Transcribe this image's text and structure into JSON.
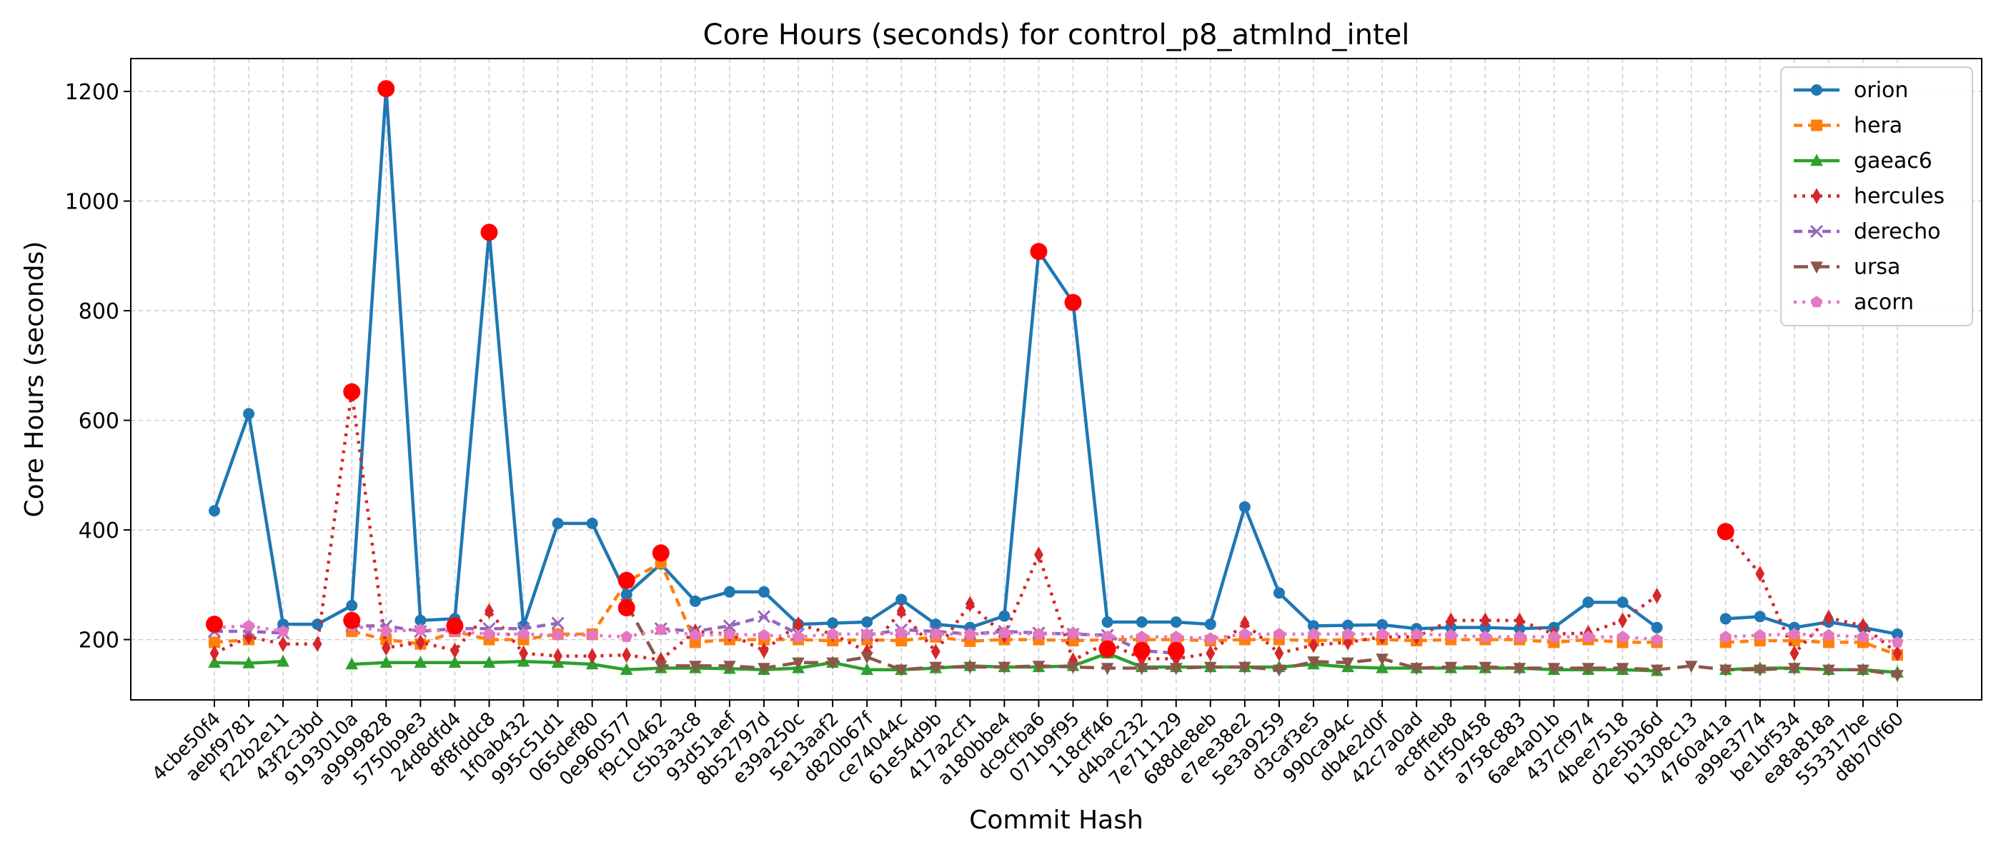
{
  "chart_data": {
    "type": "line",
    "title": "Core Hours (seconds) for control_p8_atmlnd_intel",
    "xlabel": "Commit Hash",
    "ylabel": "Core Hours (seconds)",
    "ylim": [
      90,
      1260
    ],
    "yticks": [
      200,
      400,
      600,
      800,
      1000,
      1200
    ],
    "grid": true,
    "legend_position": "top-right",
    "categories": [
      "4cbe50f4",
      "aebf9781",
      "f22b2e11",
      "43f2c3bd",
      "9193010a",
      "a9999828",
      "5750b9e3",
      "24d8dfd4",
      "8f8fddc8",
      "1f0ab432",
      "995c51d1",
      "065def80",
      "0e960577",
      "f9c10462",
      "c5b3a3c8",
      "93d51aef",
      "8b52797d",
      "e39a250c",
      "5e13aaf2",
      "d820b67f",
      "ce74044c",
      "61e54d9b",
      "417a2cf1",
      "a180bbe4",
      "dc9cfba6",
      "071b9f95",
      "118cff46",
      "d4bac232",
      "7e711129",
      "688de8eb",
      "e7ee38e2",
      "5e3a9259",
      "d3caf3e5",
      "990ca94c",
      "db4e2d0f",
      "42c7a0ad",
      "ac8ffeb8",
      "d1f50458",
      "a758c883",
      "6ae4a01b",
      "437cf974",
      "4bee7518",
      "d2e5b36d",
      "b1308c13",
      "4760a41a",
      "a99e3774",
      "be1bf534",
      "ea8a818a",
      "553317be",
      "d8b70f60"
    ],
    "series": [
      {
        "name": "orion",
        "color": "#1f77b4",
        "dash": "",
        "marker": "circle",
        "values": [
          435,
          612,
          228,
          228,
          262,
          1205,
          235,
          238,
          943,
          225,
          412,
          412,
          282,
          338,
          270,
          287,
          287,
          228,
          230,
          232,
          273,
          228,
          222,
          243,
          908,
          815,
          232,
          232,
          232,
          228,
          442,
          285,
          225,
          226,
          227,
          220,
          222,
          222,
          220,
          222,
          268,
          268,
          222,
          null,
          238,
          242,
          222,
          232,
          222,
          210
        ]
      },
      {
        "name": "hera",
        "color": "#ff7f0e",
        "dash": "12,8",
        "marker": "square",
        "values": [
          195,
          200,
          null,
          null,
          215,
          200,
          192,
          215,
          200,
          200,
          210,
          210,
          305,
          340,
          195,
          200,
          200,
          200,
          198,
          200,
          198,
          205,
          197,
          200,
          200,
          198,
          200,
          200,
          200,
          198,
          200,
          200,
          198,
          200,
          200,
          198,
          200,
          200,
          200,
          195,
          200,
          195,
          195,
          null,
          195,
          198,
          198,
          195,
          195,
          172
        ]
      },
      {
        "name": "gaeac6",
        "color": "#2ca02c",
        "dash": "",
        "marker": "triangle-up",
        "values": [
          158,
          157,
          160,
          null,
          155,
          158,
          158,
          158,
          158,
          160,
          158,
          155,
          145,
          148,
          148,
          147,
          145,
          148,
          158,
          145,
          145,
          148,
          152,
          150,
          150,
          152,
          175,
          150,
          150,
          150,
          150,
          150,
          155,
          150,
          148,
          148,
          148,
          148,
          148,
          145,
          145,
          145,
          143,
          null,
          145,
          148,
          148,
          145,
          145,
          140
        ]
      },
      {
        "name": "hercules",
        "color": "#d62728",
        "dash": "4,8",
        "marker": "diamond",
        "values": [
          175,
          205,
          192,
          192,
          652,
          185,
          195,
          180,
          252,
          175,
          170,
          170,
          172,
          163,
          215,
          210,
          180,
          228,
          210,
          178,
          252,
          178,
          265,
          208,
          355,
          162,
          195,
          165,
          165,
          175,
          230,
          175,
          190,
          195,
          205,
          205,
          235,
          235,
          235,
          210,
          212,
          235,
          280,
          null,
          395,
          320,
          175,
          240,
          225,
          175
        ]
      },
      {
        "name": "derecho",
        "color": "#9467bd",
        "dash": "12,8",
        "marker": "x",
        "values": [
          215,
          215,
          212,
          null,
          225,
          225,
          215,
          220,
          220,
          220,
          230,
          null,
          null,
          220,
          215,
          225,
          242,
          210,
          null,
          208,
          218,
          215,
          210,
          215,
          212,
          210,
          208,
          180,
          175,
          null,
          null,
          null,
          null,
          null,
          null,
          null,
          null,
          null,
          null,
          null,
          null,
          null,
          null,
          null,
          null,
          null,
          null,
          null,
          null,
          null
        ]
      },
      {
        "name": "ursa",
        "color": "#8c564b",
        "dash": "20,10",
        "marker": "triangle-down",
        "values": [
          null,
          null,
          null,
          null,
          null,
          null,
          null,
          null,
          null,
          null,
          null,
          null,
          265,
          152,
          152,
          152,
          148,
          158,
          158,
          168,
          145,
          150,
          150,
          150,
          152,
          150,
          148,
          148,
          148,
          150,
          150,
          145,
          160,
          158,
          165,
          148,
          150,
          150,
          148,
          148,
          148,
          148,
          145,
          152,
          145,
          145,
          148,
          145,
          145,
          135
        ]
      },
      {
        "name": "acorn",
        "color": "#e377c2",
        "dash": "4,8",
        "marker": "pentagon",
        "values": [
          222,
          225,
          215,
          null,
          225,
          215,
          218,
          215,
          210,
          210,
          208,
          208,
          205,
          218,
          208,
          210,
          208,
          205,
          210,
          210,
          212,
          210,
          210,
          212,
          210,
          212,
          205,
          205,
          205,
          202,
          210,
          210,
          210,
          210,
          210,
          210,
          208,
          205,
          205,
          205,
          205,
          205,
          200,
          null,
          205,
          208,
          210,
          208,
          205,
          195
        ]
      }
    ],
    "highlights": [
      {
        "x": "4cbe50f4",
        "y": 228
      },
      {
        "x": "9193010a",
        "y": 652
      },
      {
        "x": "9193010a",
        "y": 235
      },
      {
        "x": "a9999828",
        "y": 1205
      },
      {
        "x": "24d8dfd4",
        "y": 225
      },
      {
        "x": "8f8fddc8",
        "y": 943
      },
      {
        "x": "0e960577",
        "y": 308
      },
      {
        "x": "0e960577",
        "y": 258
      },
      {
        "x": "f9c10462",
        "y": 358
      },
      {
        "x": "dc9cfba6",
        "y": 908
      },
      {
        "x": "071b9f95",
        "y": 815
      },
      {
        "x": "118cff46",
        "y": 183
      },
      {
        "x": "d4bac232",
        "y": 180
      },
      {
        "x": "7e711129",
        "y": 180
      },
      {
        "x": "4760a41a",
        "y": 397
      }
    ]
  }
}
